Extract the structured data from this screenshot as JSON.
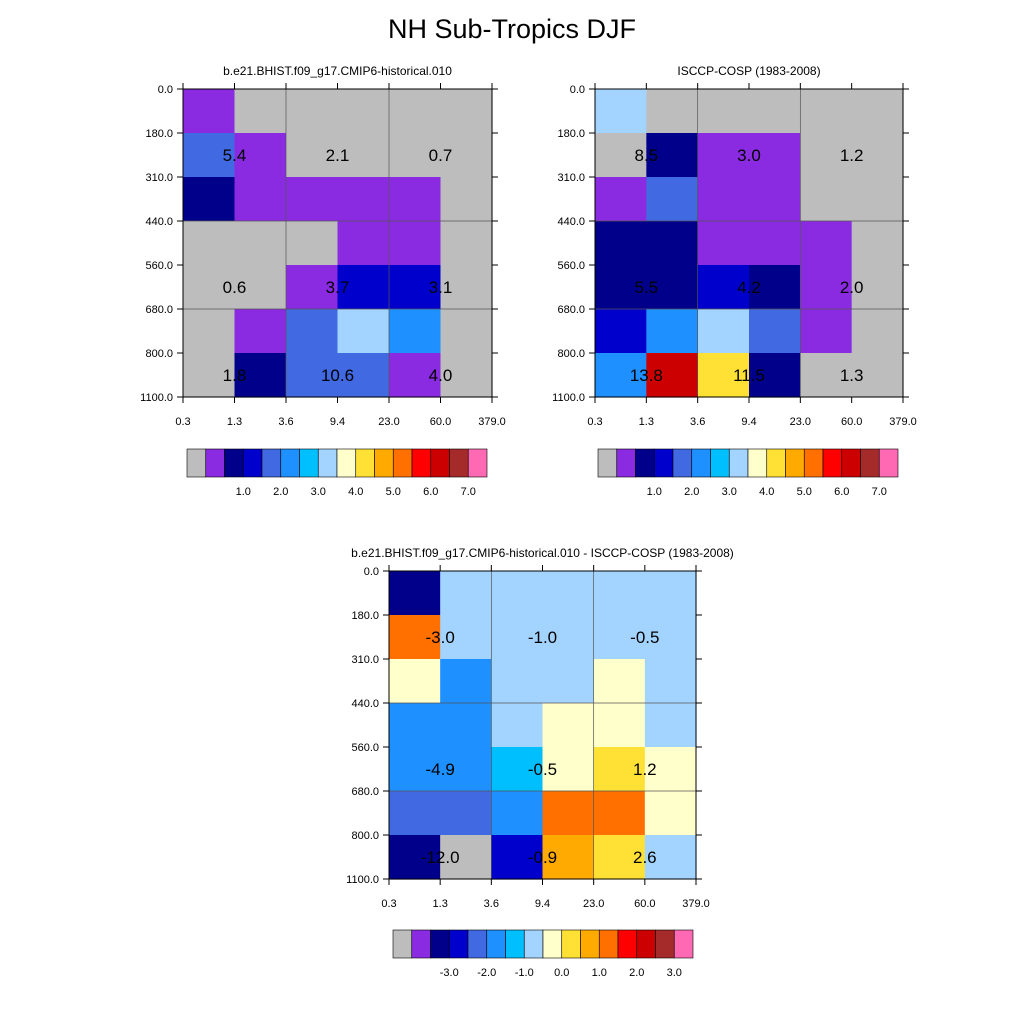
{
  "title": "NH Sub-Tropics DJF",
  "palettes": {
    "abs": [
      "#bdbdbd",
      "#8a2be2",
      "#00008b",
      "#0000cd",
      "#4169e1",
      "#1e90ff",
      "#00bfff",
      "#a3d3ff",
      "#ffffcc",
      "#ffe135",
      "#ffaa00",
      "#ff7000",
      "#ff0000",
      "#cd0000",
      "#a52a2a",
      "#ff69b4"
    ],
    "diff": [
      "#bdbdbd",
      "#8a2be2",
      "#00008b",
      "#0000cd",
      "#4169e1",
      "#1e90ff",
      "#00bfff",
      "#a3d3ff",
      "#ffffcc",
      "#ffe135",
      "#ffaa00",
      "#ff7000",
      "#ff0000",
      "#cd0000",
      "#a52a2a",
      "#ff69b4"
    ]
  },
  "chart_data": [
    {
      "type": "heatmap",
      "title": "b.e21.BHIST.f09_g17.CMIP6-historical.010",
      "x_ticks": [
        "0.3",
        "1.3",
        "3.6",
        "9.4",
        "23.0",
        "60.0",
        "379.0"
      ],
      "y_ticks": [
        "0.0",
        "180.0",
        "310.0",
        "440.0",
        "560.0",
        "680.0",
        "800.0",
        "1100.0"
      ],
      "grid": true,
      "colorbar_labels": [
        "1.0",
        "2.0",
        "3.0",
        "4.0",
        "5.0",
        "6.0",
        "7.0"
      ],
      "cells": [
        [
          1,
          0,
          0,
          0,
          0,
          0
        ],
        [
          4,
          1,
          0,
          0,
          0,
          0
        ],
        [
          2,
          1,
          1,
          1,
          1,
          0
        ],
        [
          0,
          0,
          0,
          1,
          1,
          0
        ],
        [
          0,
          0,
          1,
          3,
          3,
          0
        ],
        [
          0,
          1,
          4,
          7,
          5,
          0
        ],
        [
          0,
          2,
          4,
          4,
          1,
          0
        ]
      ],
      "annotations": [
        {
          "row": 1,
          "col": 0,
          "text": "5.4"
        },
        {
          "row": 1,
          "col": 2,
          "text": "2.1"
        },
        {
          "row": 1,
          "col": 4,
          "text": "0.7"
        },
        {
          "row": 4,
          "col": 0,
          "text": "0.6"
        },
        {
          "row": 4,
          "col": 2,
          "text": "3.7"
        },
        {
          "row": 4,
          "col": 4,
          "text": "3.1"
        },
        {
          "row": 6,
          "col": 0,
          "text": "1.8"
        },
        {
          "row": 6,
          "col": 2,
          "text": "10.6"
        },
        {
          "row": 6,
          "col": 4,
          "text": "4.0"
        }
      ]
    },
    {
      "type": "heatmap",
      "title": "ISCCP-COSP (1983-2008)",
      "x_ticks": [
        "0.3",
        "1.3",
        "3.6",
        "9.4",
        "23.0",
        "60.0",
        "379.0"
      ],
      "y_ticks": [
        "0.0",
        "180.0",
        "310.0",
        "440.0",
        "560.0",
        "680.0",
        "800.0",
        "1100.0"
      ],
      "grid": true,
      "colorbar_labels": [
        "1.0",
        "2.0",
        "3.0",
        "4.0",
        "5.0",
        "6.0",
        "7.0"
      ],
      "cells": [
        [
          7,
          0,
          0,
          0,
          0,
          0
        ],
        [
          0,
          2,
          1,
          1,
          0,
          0
        ],
        [
          1,
          4,
          1,
          1,
          0,
          0
        ],
        [
          2,
          2,
          1,
          1,
          1,
          0
        ],
        [
          2,
          2,
          3,
          2,
          1,
          0
        ],
        [
          3,
          5,
          7,
          4,
          1,
          0
        ],
        [
          5,
          13,
          9,
          2,
          0,
          0
        ]
      ],
      "annotations": [
        {
          "row": 1,
          "col": 0,
          "text": "8.5"
        },
        {
          "row": 1,
          "col": 2,
          "text": "3.0"
        },
        {
          "row": 1,
          "col": 4,
          "text": "1.2"
        },
        {
          "row": 4,
          "col": 0,
          "text": "5.5"
        },
        {
          "row": 4,
          "col": 2,
          "text": "4.2"
        },
        {
          "row": 4,
          "col": 4,
          "text": "2.0"
        },
        {
          "row": 6,
          "col": 0,
          "text": "13.8"
        },
        {
          "row": 6,
          "col": 2,
          "text": "11.5"
        },
        {
          "row": 6,
          "col": 4,
          "text": "1.3"
        }
      ]
    },
    {
      "type": "heatmap",
      "title": "b.e21.BHIST.f09_g17.CMIP6-historical.010 - ISCCP-COSP (1983-2008)",
      "x_ticks": [
        "0.3",
        "1.3",
        "3.6",
        "9.4",
        "23.0",
        "60.0",
        "379.0"
      ],
      "y_ticks": [
        "0.0",
        "180.0",
        "310.0",
        "440.0",
        "560.0",
        "680.0",
        "800.0",
        "1100.0"
      ],
      "grid": true,
      "colorbar_labels": [
        "-3.0",
        "-2.0",
        "-1.0",
        "0.0",
        "1.0",
        "2.0",
        "3.0"
      ],
      "cells": [
        [
          2,
          7,
          7,
          7,
          7,
          7
        ],
        [
          11,
          7,
          7,
          7,
          7,
          7
        ],
        [
          8,
          5,
          7,
          7,
          8,
          7
        ],
        [
          5,
          5,
          7,
          8,
          8,
          7
        ],
        [
          5,
          5,
          6,
          8,
          9,
          8
        ],
        [
          4,
          4,
          5,
          11,
          11,
          8
        ],
        [
          2,
          0,
          3,
          10,
          9,
          7
        ]
      ],
      "annotations": [
        {
          "row": 1,
          "col": 0,
          "text": "-3.0"
        },
        {
          "row": 1,
          "col": 2,
          "text": "-1.0"
        },
        {
          "row": 1,
          "col": 4,
          "text": "-0.5"
        },
        {
          "row": 4,
          "col": 0,
          "text": "-4.9"
        },
        {
          "row": 4,
          "col": 2,
          "text": "-0.5"
        },
        {
          "row": 4,
          "col": 4,
          "text": "1.2"
        },
        {
          "row": 6,
          "col": 0,
          "text": "-12.0"
        },
        {
          "row": 6,
          "col": 2,
          "text": "-0.9"
        },
        {
          "row": 6,
          "col": 4,
          "text": "2.6"
        }
      ]
    }
  ]
}
